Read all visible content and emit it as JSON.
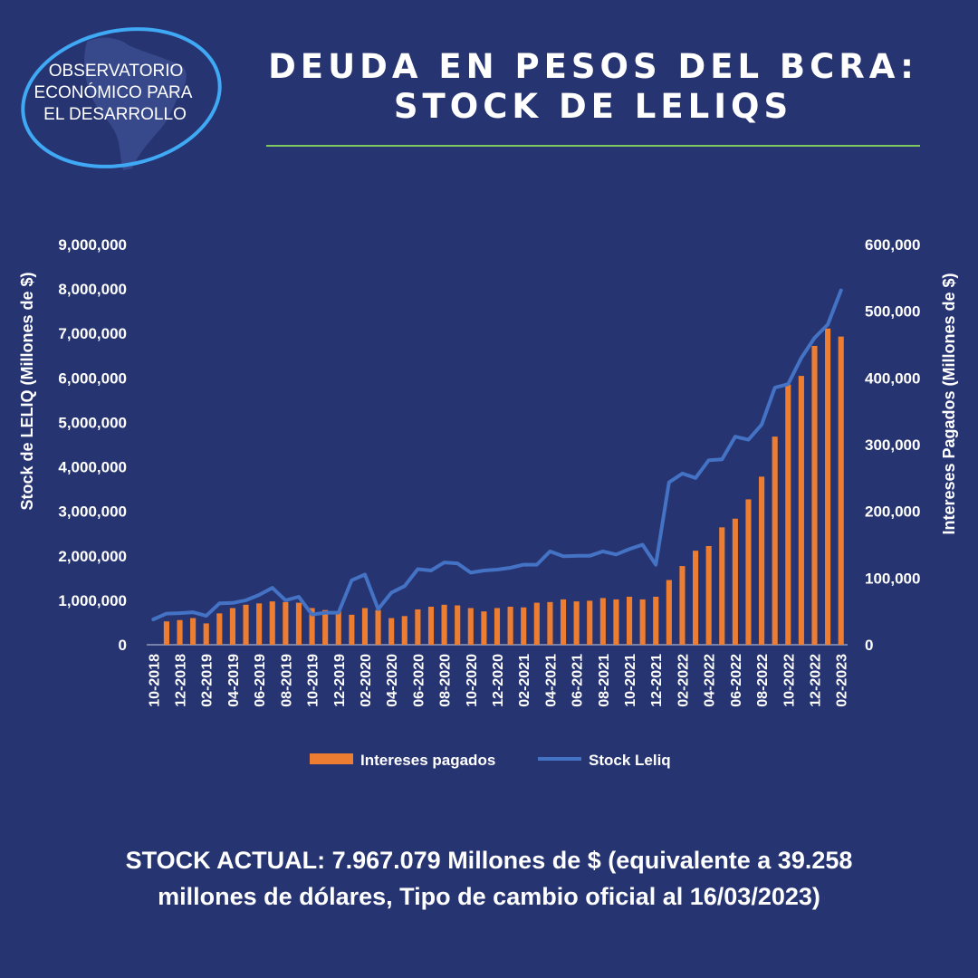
{
  "logo": {
    "lines": [
      "OBSERVATORIO",
      "ECONÓMICO PARA",
      "EL DESARROLLO"
    ],
    "map_icon": "south-america-map-icon"
  },
  "title": {
    "line1": "DEUDA EN PESOS DEL BCRA:",
    "line2": "STOCK DE LELIQS",
    "rule_color": "#7fc75f"
  },
  "colors": {
    "background": "#263471",
    "bar": "#ed7d31",
    "line": "#4472c4",
    "text": "#ffffff"
  },
  "chart_data": {
    "type": "bar",
    "ylabel": "Stock de LELIQ (Millones de $)",
    "y2label": "Intereses Pagados (Millones de $)",
    "ylim": [
      0,
      9000000
    ],
    "y2lim": [
      0,
      600000
    ],
    "yticks": [
      "0",
      "1,000,000",
      "2,000,000",
      "3,000,000",
      "4,000,000",
      "5,000,000",
      "6,000,000",
      "7,000,000",
      "8,000,000",
      "9,000,000"
    ],
    "y2ticks": [
      "0",
      "100,000",
      "200,000",
      "300,000",
      "400,000",
      "500,000",
      "600,000"
    ],
    "xtick_labels": [
      "10-2018",
      "12-2018",
      "02-2019",
      "04-2019",
      "06-2019",
      "08-2019",
      "10-2019",
      "12-2019",
      "02-2020",
      "04-2020",
      "06-2020",
      "08-2020",
      "10-2020",
      "12-2020",
      "02-2021",
      "04-2021",
      "06-2021",
      "08-2021",
      "10-2021",
      "12-2021",
      "02-2022",
      "04-2022",
      "06-2022",
      "08-2022",
      "10-2022",
      "12-2022",
      "02-2023"
    ],
    "legend_position": "bottom",
    "series": [
      {
        "name": "Intereses pagados",
        "type": "bar",
        "axis": "right",
        "values": [
          0,
          35000,
          37000,
          40000,
          32000,
          47000,
          55000,
          60000,
          62000,
          65000,
          64000,
          63000,
          55000,
          52000,
          50000,
          45000,
          55000,
          52000,
          40000,
          43000,
          53000,
          57000,
          60000,
          59000,
          55000,
          50000,
          55000,
          57000,
          56000,
          63000,
          64000,
          68000,
          65000,
          66000,
          70000,
          68000,
          72000,
          68000,
          72000,
          97000,
          118000,
          141000,
          148000,
          176000,
          189000,
          218000,
          252000,
          312000,
          390000,
          403000,
          448000,
          474000,
          462000
        ]
      },
      {
        "name": "Stock Leliq",
        "type": "line",
        "axis": "left",
        "values": [
          570000,
          700000,
          710000,
          730000,
          650000,
          930000,
          940000,
          1000000,
          1120000,
          1280000,
          1000000,
          1080000,
          680000,
          720000,
          720000,
          1450000,
          1580000,
          800000,
          1170000,
          1320000,
          1700000,
          1670000,
          1850000,
          1830000,
          1620000,
          1670000,
          1690000,
          1730000,
          1800000,
          1800000,
          2100000,
          1990000,
          2000000,
          2000000,
          2100000,
          2030000,
          2150000,
          2250000,
          1800000,
          3650000,
          3850000,
          3750000,
          4150000,
          4170000,
          4680000,
          4610000,
          4950000,
          5780000,
          5860000,
          6450000,
          6900000,
          7200000,
          7970000
        ]
      }
    ]
  },
  "footer": {
    "line1": "STOCK ACTUAL: 7.967.079 Millones de $ (equivalente a 39.258",
    "line2": "millones de dólares, Tipo de cambio oficial al 16/03/2023)"
  }
}
